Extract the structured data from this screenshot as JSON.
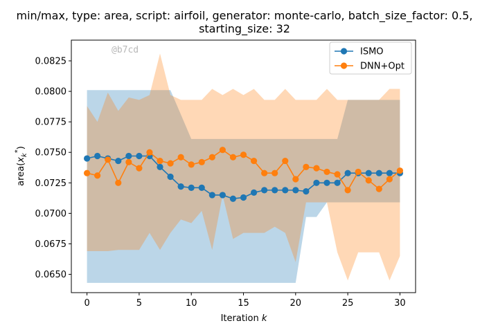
{
  "chart_data": {
    "type": "line",
    "title_line1": "min/max, type: area, script: airfoil, generator: monte-carlo, batch_size_factor: 0.5,",
    "title_line2": "starting_size: 32",
    "xlabel": "Iteration k",
    "ylabel": "area(x_k^*)",
    "watermark": "@b7cd",
    "xlim": [
      -1.5,
      31.5
    ],
    "ylim": [
      0.0635,
      0.0842
    ],
    "xticks": [
      0,
      5,
      10,
      15,
      20,
      25,
      30
    ],
    "yticks": [
      0.065,
      0.0675,
      0.07,
      0.0725,
      0.075,
      0.0775,
      0.08,
      0.0825
    ],
    "ytick_labels": [
      "0.0650",
      "0.0675",
      "0.0700",
      "0.0725",
      "0.0750",
      "0.0775",
      "0.0800",
      "0.0825"
    ],
    "legend_position": "top-right",
    "x": [
      0,
      1,
      2,
      3,
      4,
      5,
      6,
      7,
      8,
      9,
      10,
      11,
      12,
      13,
      14,
      15,
      16,
      17,
      18,
      19,
      20,
      21,
      22,
      23,
      24,
      25,
      26,
      27,
      28,
      29,
      30
    ],
    "series": [
      {
        "name": "ISMO",
        "color": "#1f77b4",
        "values": [
          0.0745,
          0.0747,
          0.0745,
          0.0743,
          0.0747,
          0.0747,
          0.0747,
          0.0738,
          0.073,
          0.0722,
          0.0721,
          0.0721,
          0.0715,
          0.0715,
          0.0712,
          0.0713,
          0.0717,
          0.0719,
          0.0719,
          0.0719,
          0.0719,
          0.0718,
          0.0725,
          0.0725,
          0.0725,
          0.0733,
          0.0733,
          0.0733,
          0.0733,
          0.0733,
          0.0733
        ],
        "min": [
          0.0643,
          0.0643,
          0.0643,
          0.0643,
          0.0643,
          0.0643,
          0.0643,
          0.0643,
          0.0643,
          0.0643,
          0.0643,
          0.0643,
          0.0643,
          0.0643,
          0.0643,
          0.0643,
          0.0643,
          0.0643,
          0.0643,
          0.0643,
          0.0643,
          0.0697,
          0.0697,
          0.0709,
          0.0709,
          0.0709,
          0.0709,
          0.0709,
          0.0709,
          0.0709,
          0.0709
        ],
        "max": [
          0.0801,
          0.0801,
          0.0801,
          0.0801,
          0.0801,
          0.0801,
          0.0801,
          0.0801,
          0.0801,
          0.0781,
          0.0761,
          0.0761,
          0.0761,
          0.0761,
          0.0761,
          0.0761,
          0.0761,
          0.0761,
          0.0761,
          0.0761,
          0.0761,
          0.0761,
          0.0761,
          0.0761,
          0.0761,
          0.0793,
          0.0793,
          0.0793,
          0.0793,
          0.0793,
          0.0793
        ]
      },
      {
        "name": "DNN+Opt",
        "color": "#ff7f0e",
        "values": [
          0.0733,
          0.0731,
          0.0744,
          0.0725,
          0.0742,
          0.0737,
          0.075,
          0.0743,
          0.0741,
          0.0746,
          0.074,
          0.0742,
          0.0746,
          0.0752,
          0.0746,
          0.0748,
          0.0743,
          0.0733,
          0.0733,
          0.0743,
          0.0728,
          0.0738,
          0.0737,
          0.0734,
          0.0732,
          0.0719,
          0.0734,
          0.0727,
          0.072,
          0.0728,
          0.0735
        ],
        "min": [
          0.0669,
          0.0669,
          0.0669,
          0.067,
          0.067,
          0.067,
          0.0684,
          0.067,
          0.0684,
          0.0695,
          0.0692,
          0.0702,
          0.067,
          0.0715,
          0.0679,
          0.0684,
          0.0684,
          0.0684,
          0.0689,
          0.0684,
          0.066,
          0.0709,
          0.0709,
          0.0709,
          0.0668,
          0.0645,
          0.0668,
          0.0668,
          0.0668,
          0.0645,
          0.0665
        ],
        "max": [
          0.0788,
          0.0775,
          0.0799,
          0.0784,
          0.0795,
          0.0793,
          0.0797,
          0.0831,
          0.0797,
          0.0793,
          0.0793,
          0.0793,
          0.0802,
          0.0797,
          0.0802,
          0.0797,
          0.0802,
          0.0793,
          0.0793,
          0.0802,
          0.0793,
          0.0793,
          0.0793,
          0.0802,
          0.0793,
          0.0793,
          0.0793,
          0.0793,
          0.0793,
          0.0802,
          0.0802
        ]
      }
    ]
  }
}
